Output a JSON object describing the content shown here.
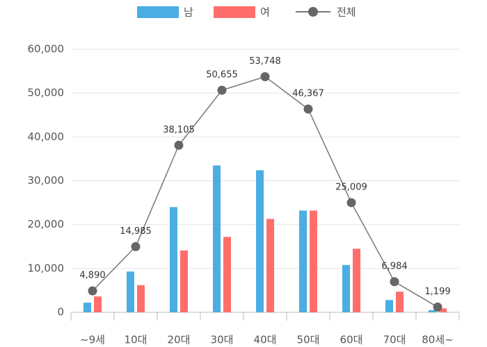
{
  "chart_data": {
    "type": "bar-line",
    "categories": [
      "~9세",
      "10대",
      "20대",
      "30대",
      "40대",
      "50대",
      "60대",
      "70대",
      "80세~"
    ],
    "series": [
      {
        "name": "남",
        "type": "bar",
        "color": "#4aaee3",
        "values": [
          2200,
          9300,
          24000,
          33500,
          32400,
          23200,
          10800,
          2800,
          500
        ]
      },
      {
        "name": "여",
        "type": "bar",
        "color": "#ff6e6b",
        "values": [
          3600,
          6200,
          14100,
          17200,
          21300,
          23200,
          14500,
          4700,
          900
        ]
      },
      {
        "name": "전체",
        "type": "line",
        "color": "#777777",
        "values": [
          4890,
          14985,
          38105,
          50655,
          53748,
          46367,
          25009,
          6984,
          1199
        ],
        "value_labels": [
          "4,890",
          "14,985",
          "38,105",
          "50,655",
          "53,748",
          "46,367",
          "25,009",
          "6,984",
          "1,199"
        ]
      }
    ],
    "ylim": [
      0,
      60000
    ],
    "yticks": [
      0,
      {
        "value": 10000,
        "label": "10,000"
      },
      {
        "value": 20000,
        "label": "20,000"
      },
      {
        "value": 30000,
        "label": "30,000"
      },
      {
        "value": 40000,
        "label": "40,000"
      },
      {
        "value": 50000,
        "label": "50,000"
      },
      {
        "value": 60000,
        "label": "60,000"
      }
    ],
    "grid": true,
    "legend": "top"
  }
}
